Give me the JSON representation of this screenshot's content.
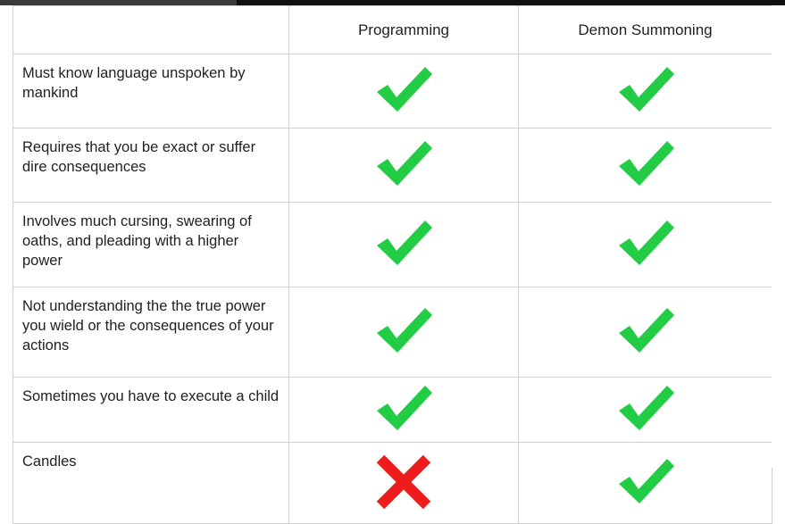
{
  "header": {
    "col1": "",
    "col2": "Programming",
    "col3": "Demon Summoning"
  },
  "rows": [
    {
      "label": "Must know language unspoken by mankind",
      "programming": "check",
      "demon": "check"
    },
    {
      "label": "Requires that you be exact or suffer dire consequences",
      "programming": "check",
      "demon": "check"
    },
    {
      "label": "Involves much cursing, swearing of oaths, and pleading with a higher power",
      "programming": "check",
      "demon": "check"
    },
    {
      "label": "Not understanding the the true power you wield or the consequences of your actions",
      "programming": "check",
      "demon": "check"
    },
    {
      "label": "Sometimes you have to execute a child",
      "programming": "check",
      "demon": "check"
    },
    {
      "label": "Candles",
      "programming": "cross",
      "demon": "check"
    }
  ],
  "colors": {
    "check": "#22cc44",
    "cross": "#ee1c1c",
    "grid": "#d0d0d0",
    "text": "#202124"
  },
  "icons": {
    "check": "check-mark-icon",
    "cross": "cross-mark-icon"
  }
}
